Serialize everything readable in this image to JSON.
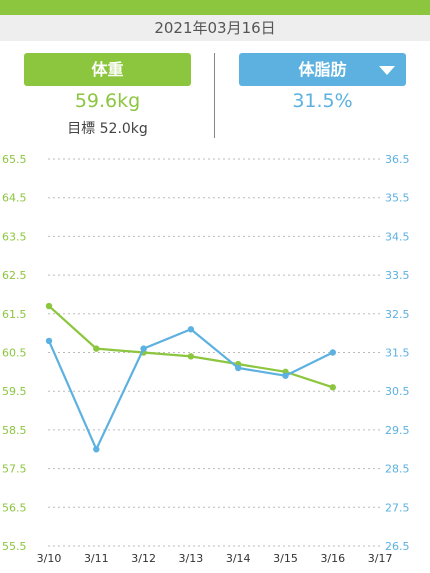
{
  "header": {
    "date": "2021年03月16日"
  },
  "tabs": {
    "weight": {
      "label": "体重",
      "value": "59.6kg",
      "goal": "目標 52.0kg"
    },
    "fat": {
      "label": "体脂肪",
      "value": "31.5%"
    }
  },
  "colors": {
    "accent_green": "#8cc63f",
    "accent_blue": "#5cb1e0"
  },
  "chart_data": {
    "type": "line",
    "categories": [
      "3/10",
      "3/11",
      "3/12",
      "3/13",
      "3/14",
      "3/15",
      "3/16",
      "3/17"
    ],
    "y_left": {
      "ticks": [
        "65.5",
        "64.5",
        "63.5",
        "62.5",
        "61.5",
        "60.5",
        "59.5",
        "58.5",
        "57.5",
        "56.5",
        "55.5"
      ],
      "ylim": [
        55.5,
        65.5
      ]
    },
    "y_right": {
      "ticks": [
        "36.5",
        "35.5",
        "34.5",
        "33.5",
        "32.5",
        "31.5",
        "30.5",
        "29.5",
        "28.5",
        "27.5",
        "26.5"
      ],
      "ylim": [
        26.5,
        36.5
      ]
    },
    "series": [
      {
        "axis": "left",
        "color": "#8cc63f",
        "values": [
          61.7,
          60.6,
          60.5,
          60.4,
          60.2,
          60.0,
          59.6,
          null
        ]
      },
      {
        "axis": "right",
        "color": "#5cb1e0",
        "values": [
          31.8,
          29.0,
          31.6,
          32.1,
          31.1,
          30.9,
          31.5,
          null
        ]
      }
    ],
    "grid": true
  }
}
